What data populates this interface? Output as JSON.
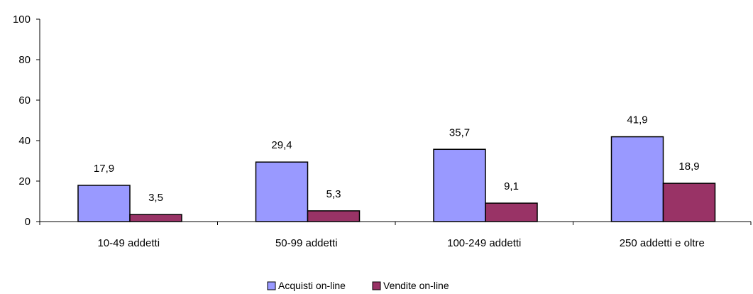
{
  "chart_data": {
    "type": "bar",
    "categories": [
      "10-49 addetti",
      "50-99 addetti",
      "100-249 addetti",
      "250 addetti e oltre"
    ],
    "series": [
      {
        "name": "Acquisti on-line",
        "values": [
          17.9,
          29.4,
          35.7,
          41.9
        ],
        "labels": [
          "17,9",
          "29,4",
          "35,7",
          "41,9"
        ],
        "color": "#9999ff"
      },
      {
        "name": "Vendite on-line",
        "values": [
          3.5,
          5.3,
          9.1,
          18.9
        ],
        "labels": [
          "3,5",
          "5,3",
          "9,1",
          "18,9"
        ],
        "color": "#993366"
      }
    ],
    "ylim": [
      0,
      100
    ],
    "yticks": [
      "0",
      "20",
      "40",
      "60",
      "80",
      "100"
    ],
    "yticks_values": [
      0,
      20,
      40,
      60,
      80,
      100
    ],
    "grid": false,
    "legend_position": "bottom"
  }
}
